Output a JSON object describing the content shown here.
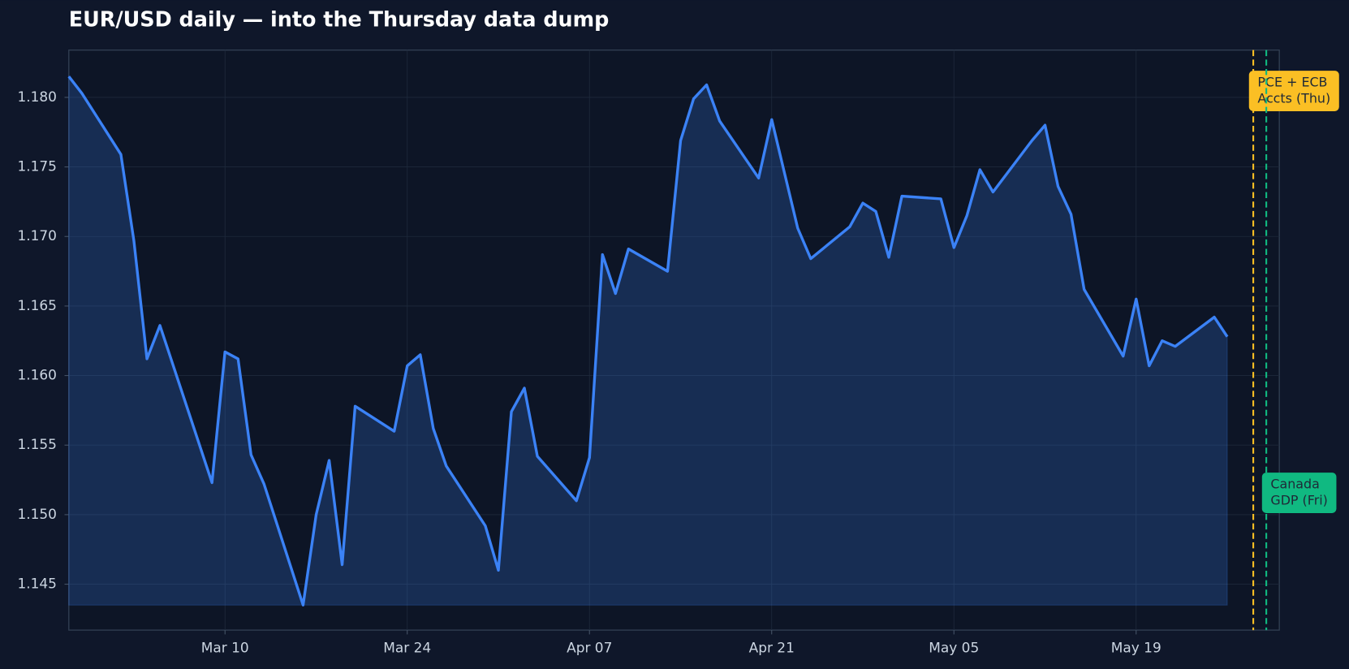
{
  "chart_data": {
    "type": "line",
    "title": "EUR/USD daily — into the Thursday data dump",
    "x": [
      "Feb 26",
      "Feb 27",
      "Mar 02",
      "Mar 03",
      "Mar 04",
      "Mar 05",
      "Mar 09",
      "Mar 10",
      "Mar 11",
      "Mar 12",
      "Mar 13",
      "Mar 16",
      "Mar 17",
      "Mar 18",
      "Mar 19",
      "Mar 20",
      "Mar 23",
      "Mar 24",
      "Mar 25",
      "Mar 26",
      "Mar 27",
      "Mar 30",
      "Mar 31",
      "Apr 01",
      "Apr 02",
      "Apr 03",
      "Apr 06",
      "Apr 07",
      "Apr 08",
      "Apr 09",
      "Apr 10",
      "Apr 13",
      "Apr 14",
      "Apr 15",
      "Apr 16",
      "Apr 17",
      "Apr 20",
      "Apr 21",
      "Apr 22",
      "Apr 23",
      "Apr 24",
      "Apr 27",
      "Apr 28",
      "Apr 29",
      "Apr 30",
      "May 01",
      "May 04",
      "May 05",
      "May 06",
      "May 07",
      "May 08",
      "May 11",
      "May 12",
      "May 13",
      "May 14",
      "May 15",
      "May 18",
      "May 19",
      "May 20",
      "May 21",
      "May 22",
      "May 25",
      "May 26"
    ],
    "values": [
      1.1815,
      1.1803,
      1.1759,
      1.1697,
      1.1612,
      1.1636,
      1.1523,
      1.1617,
      1.1612,
      1.1543,
      1.1522,
      1.1435,
      1.15,
      1.1539,
      1.1464,
      1.1578,
      1.156,
      1.1607,
      1.1615,
      1.1562,
      1.1535,
      1.1492,
      1.146,
      1.1574,
      1.1591,
      1.1542,
      1.151,
      1.1541,
      1.1687,
      1.1659,
      1.1691,
      1.1675,
      1.1769,
      1.1799,
      1.1809,
      1.1783,
      1.1742,
      1.1784,
      1.1745,
      1.1706,
      1.1684,
      1.1707,
      1.1724,
      1.1718,
      1.1685,
      1.1729,
      1.1727,
      1.1692,
      1.1715,
      1.1748,
      1.1732,
      1.1769,
      1.178,
      1.1736,
      1.1716,
      1.1662,
      1.1614,
      1.1655,
      1.1607,
      1.1625,
      1.1621,
      1.1642,
      1.1628
    ],
    "color": "#3b82f6",
    "xlim": [
      "Feb 26",
      "May 30"
    ],
    "xticks": [
      "Mar 10",
      "Mar 24",
      "Apr 07",
      "Apr 21",
      "May 05",
      "May 19"
    ],
    "ylim": [
      1.1417,
      1.1834
    ],
    "yticks": [
      1.145,
      {
        "value": 1.15,
        "label": "1.150"
      },
      1.155,
      {
        "value": 1.16,
        "label": "1.160"
      },
      1.165,
      {
        "value": 1.17,
        "label": "1.170"
      },
      1.175,
      {
        "value": 1.18,
        "label": "1.180"
      }
    ],
    "grid": true,
    "annotations": [
      {
        "x": "May 28",
        "text": [
          "PCE + ECB",
          "Accts (Thu)"
        ],
        "color": "#fbbf24",
        "position": "top"
      },
      {
        "x": "May 29",
        "text": [
          "Canada",
          "GDP (Fri)"
        ],
        "color": "#10b981",
        "position": "bottom"
      }
    ]
  }
}
